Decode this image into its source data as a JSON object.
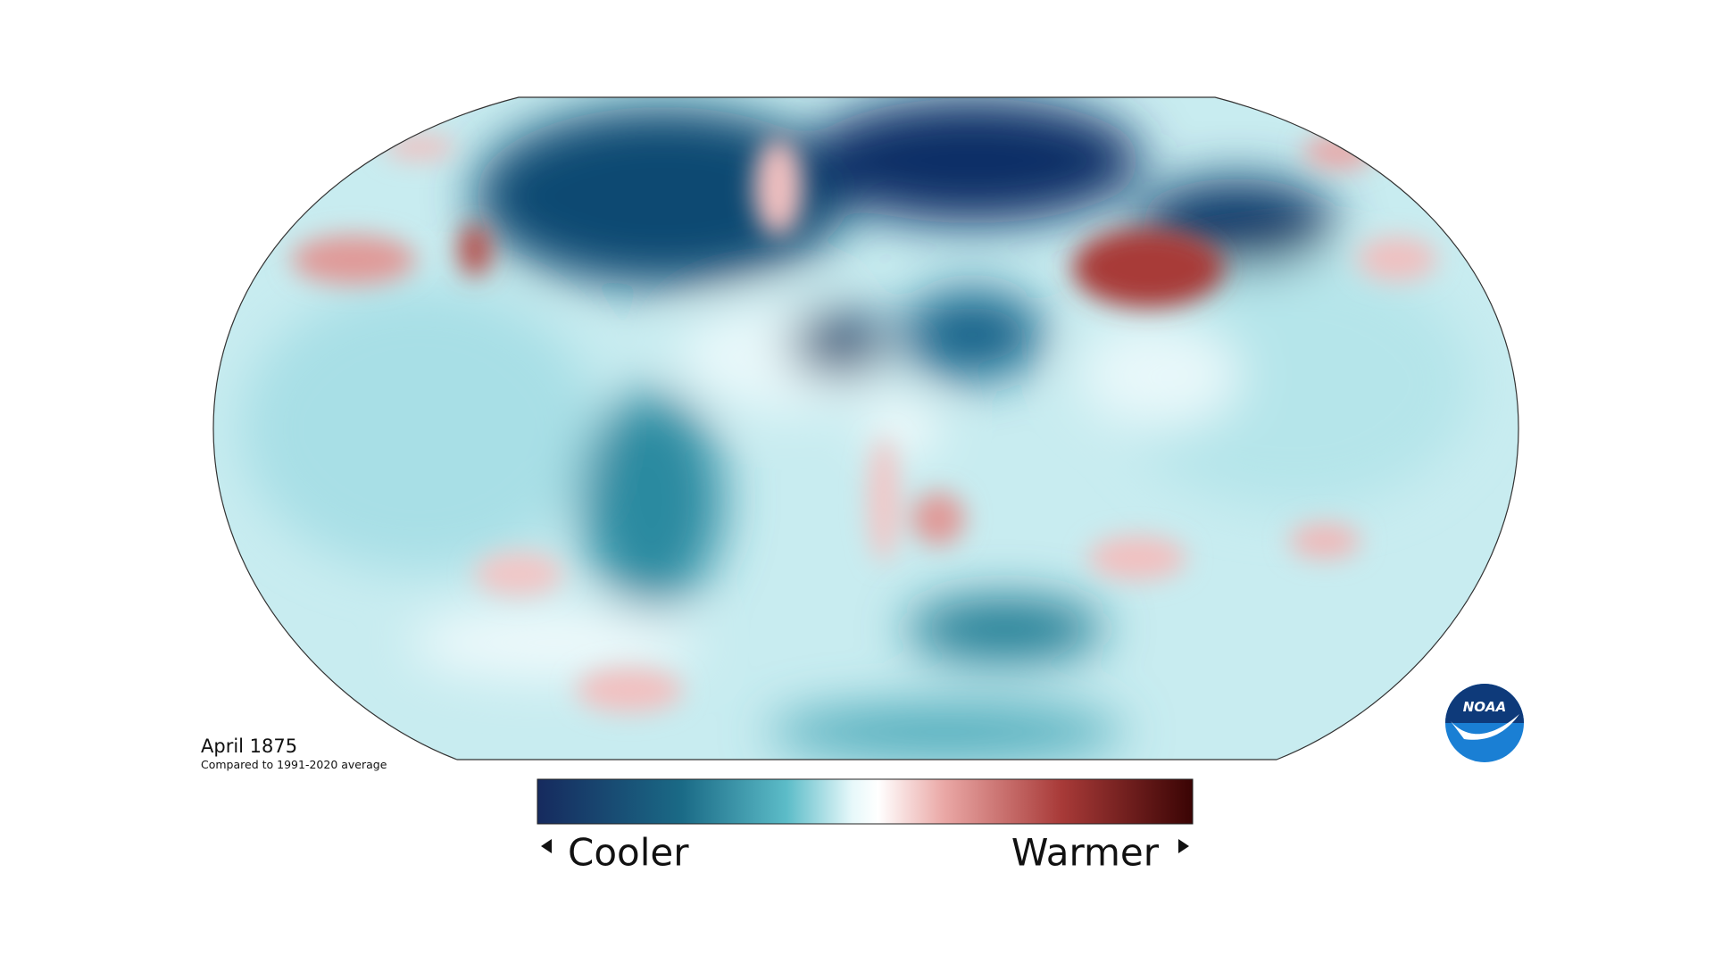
{
  "title": "April 1875",
  "subtitle": "Compared to 1991-2020 average",
  "legend": {
    "low": "Cooler",
    "high": "Warmer"
  },
  "logo": "NOAA"
}
